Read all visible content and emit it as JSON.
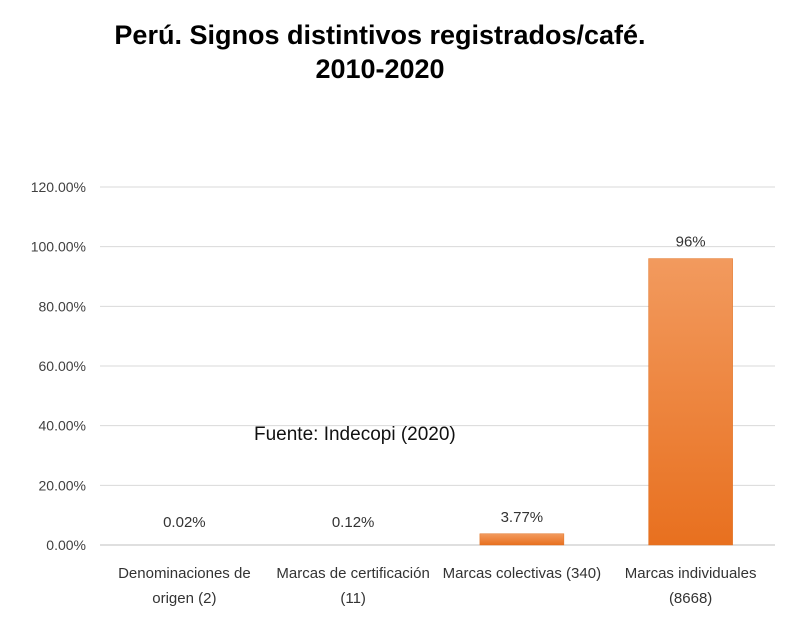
{
  "title_line1": "Perú. Signos distintivos registrados/café.",
  "title_line2": "2010-2020",
  "source": "Fuente: Indecopi (2020)",
  "chart_data": {
    "type": "bar",
    "categories": [
      [
        "Denominaciones de",
        "origen (2)"
      ],
      [
        "Marcas de certificación",
        "(11)"
      ],
      [
        "Marcas colectivas (340)"
      ],
      [
        "Marcas individuales",
        "(8668)"
      ]
    ],
    "values": [
      0.02,
      0.12,
      3.77,
      96
    ],
    "data_labels": [
      "0.02%",
      "0.12%",
      "3.77%",
      "96%"
    ],
    "yticks": [
      "0.00%",
      "20.00%",
      "40.00%",
      "60.00%",
      "80.00%",
      "100.00%",
      "120.00%"
    ],
    "ylim": [
      0,
      120
    ],
    "grid": true,
    "bar_color": "#ED7D31",
    "bar_color_light": "#F29A5E"
  }
}
